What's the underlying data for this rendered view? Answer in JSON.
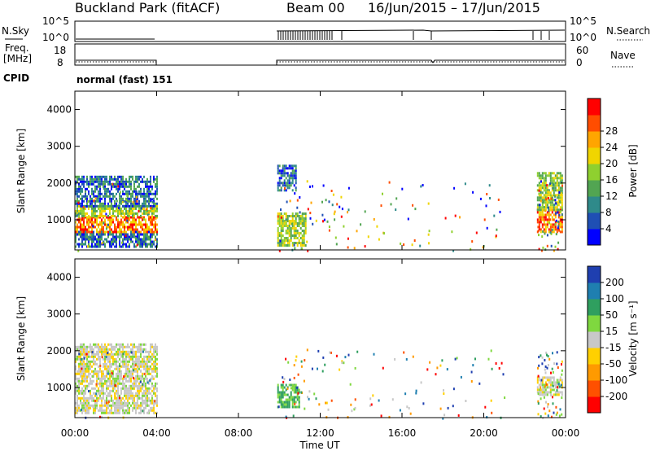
{
  "header": {
    "station": "Buckland Park (fitACF)",
    "beam": "Beam 00",
    "date_range": "16/Jun/2015 – 17/Jun/2015"
  },
  "status_panels": {
    "nsky_label": "N.Sky",
    "nsearch_label": "N.Search",
    "freq_label_1": "Freq.",
    "freq_label_2": "[MHz]",
    "nave_label": "Nave",
    "cpid_label": "CPID",
    "cpid_value": "normal (fast) 151",
    "nsky_ticks": [
      "10^5",
      "10^0"
    ],
    "nsearch_ticks": [
      "10^5",
      "10^0"
    ],
    "freq_ticks": [
      "18",
      "8"
    ],
    "nave_ticks": [
      "60",
      "0"
    ]
  },
  "chart_data": [
    {
      "type": "heatmap",
      "name": "power",
      "ylabel": "Slant Range [km]",
      "xlabel": "Time UT",
      "x_ticks": [
        "00:00",
        "04:00",
        "08:00",
        "12:00",
        "16:00",
        "20:00",
        "00:00"
      ],
      "y_ticks": [
        "1000",
        "2000",
        "3000",
        "4000"
      ],
      "xlim_hours": [
        0,
        24
      ],
      "ylim_km": [
        180,
        4500
      ],
      "colorbar_label": "Power [dB]",
      "colorbar_ticks": [
        "4",
        "8",
        "12",
        "16",
        "20",
        "24",
        "28"
      ],
      "colorbar_colors": [
        "#0000ff",
        "#1f4fb4",
        "#2f8a8a",
        "#52a552",
        "#8fd02f",
        "#f0d500",
        "#ffa500",
        "#ff4d00",
        "#ff0000"
      ],
      "regions": [
        {
          "t0": 0.0,
          "t1": 4.0,
          "r0": 300,
          "r1": 700,
          "level": "low"
        },
        {
          "t0": 0.0,
          "t1": 4.0,
          "r0": 700,
          "r1": 1100,
          "level": "high"
        },
        {
          "t0": 0.0,
          "t1": 4.0,
          "r0": 1100,
          "r1": 1400,
          "level": "mid"
        },
        {
          "t0": 0.0,
          "t1": 4.0,
          "r0": 1400,
          "r1": 2200,
          "level": "low"
        },
        {
          "t0": 9.9,
          "t1": 11.3,
          "r0": 300,
          "r1": 1200,
          "level": "mid"
        },
        {
          "t0": 9.9,
          "t1": 10.8,
          "r0": 1800,
          "r1": 2500,
          "level": "low"
        },
        {
          "t0": 22.6,
          "t1": 23.8,
          "r0": 700,
          "r1": 1300,
          "level": "high"
        },
        {
          "t0": 22.6,
          "t1": 23.8,
          "r0": 1300,
          "r1": 2300,
          "level": "mid"
        }
      ]
    },
    {
      "type": "heatmap",
      "name": "velocity",
      "ylabel": "Slant Range [km]",
      "xlabel": "Time UT",
      "x_ticks": [
        "00:00",
        "04:00",
        "08:00",
        "12:00",
        "16:00",
        "20:00",
        "00:00"
      ],
      "y_ticks": [
        "1000",
        "2000",
        "3000",
        "4000"
      ],
      "xlim_hours": [
        0,
        24
      ],
      "ylim_km": [
        180,
        4500
      ],
      "colorbar_label": "Velocity [m s⁻¹]",
      "colorbar_ticks": [
        "200",
        "100",
        "50",
        "15",
        "-15",
        "-50",
        "-100",
        "-200"
      ],
      "colorbar_colors": [
        "#1f3fb0",
        "#1f7fb0",
        "#2f9f5f",
        "#7fd83f",
        "#c8c8c8",
        "#ffd000",
        "#ff9a00",
        "#ff5000",
        "#ff0000"
      ],
      "regions": [
        {
          "t0": 0.0,
          "t1": 4.0,
          "r0": 300,
          "r1": 2200,
          "level": "zero"
        },
        {
          "t0": 9.9,
          "t1": 11.0,
          "r0": 500,
          "r1": 1100,
          "level": "pos"
        },
        {
          "t0": 22.6,
          "t1": 23.8,
          "r0": 800,
          "r1": 1300,
          "level": "zero"
        }
      ]
    }
  ]
}
